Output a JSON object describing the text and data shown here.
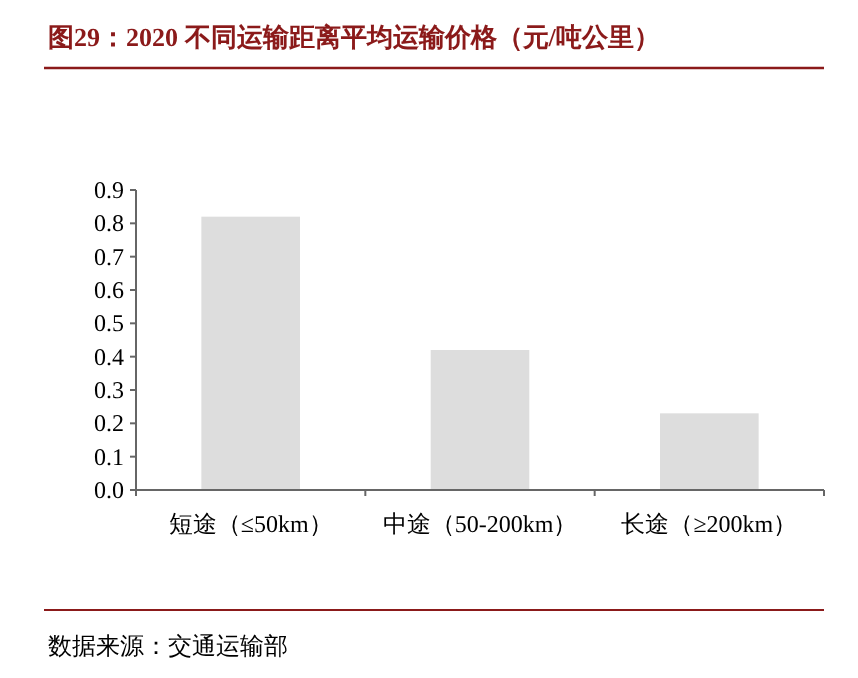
{
  "chart_data": {
    "type": "bar",
    "title": "图29：2020 不同运输距离平均运输价格（元/吨公里）",
    "categories": [
      "短途（≤50km）",
      "中途（50-200km）",
      "长途（≥200km）"
    ],
    "values": [
      0.82,
      0.42,
      0.23
    ],
    "color": "#dddddd",
    "ylim": [
      0,
      0.9
    ],
    "yticks": [
      {
        "value": 0,
        "label": "0.0"
      },
      0.1,
      0.2,
      0.3,
      0.4,
      0.5,
      0.6,
      0.7,
      0.8,
      0.9
    ],
    "grid": false,
    "annotations": [
      "数据来源：交通运输部"
    ]
  }
}
